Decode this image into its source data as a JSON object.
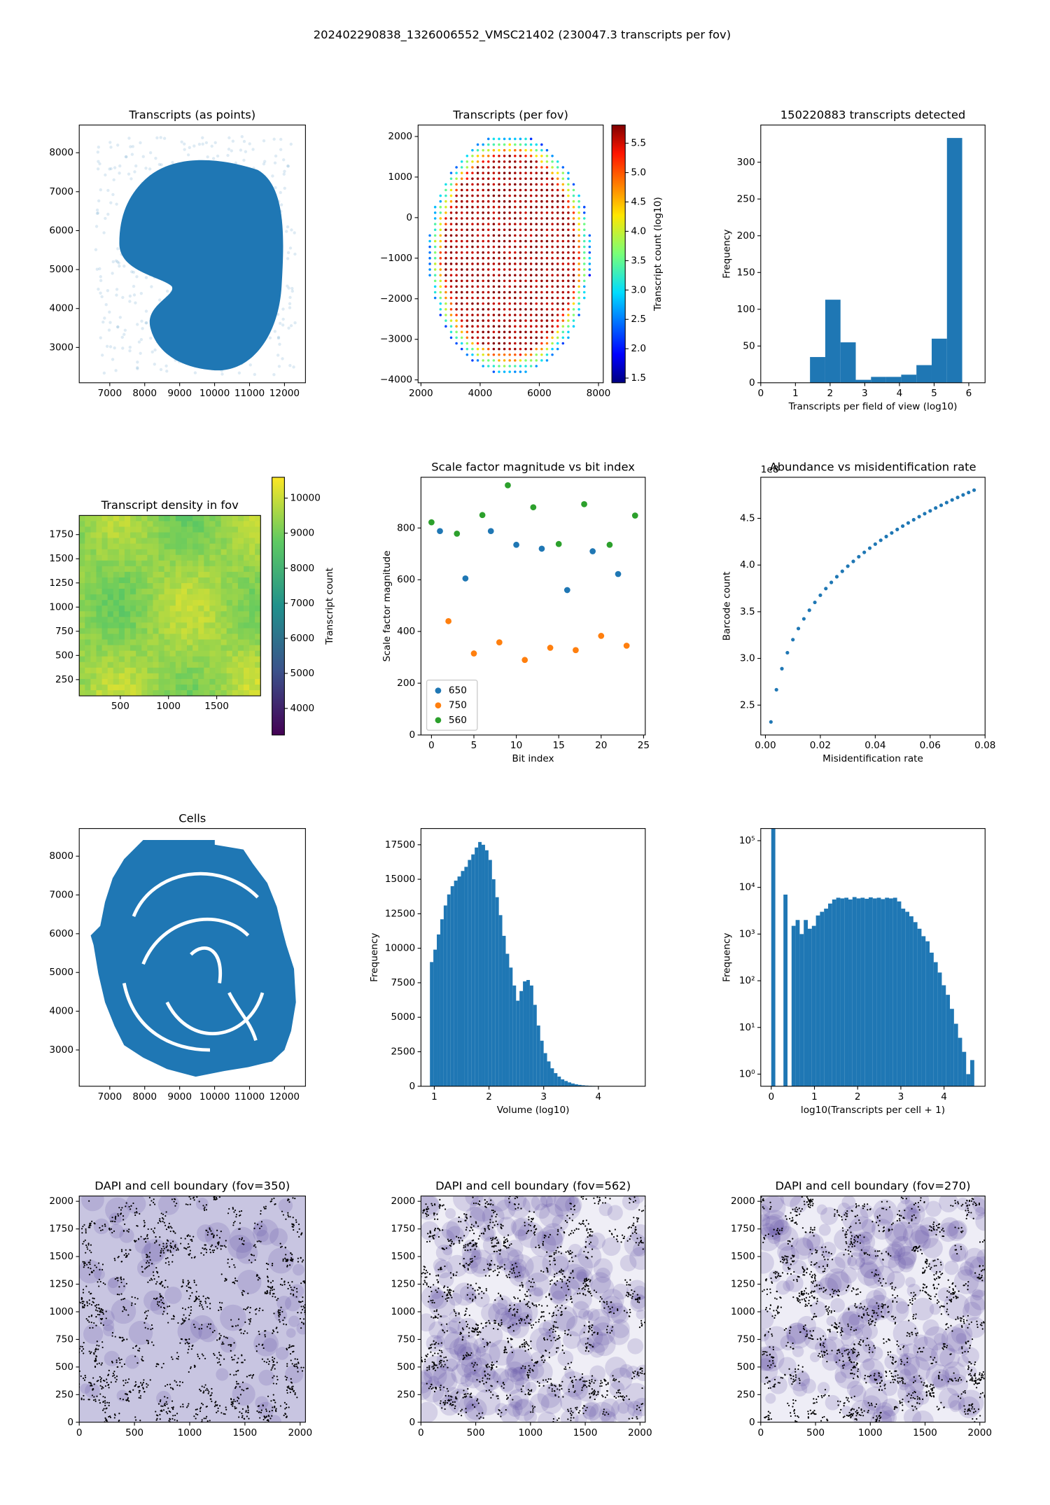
{
  "title": "202402290838_1326006552_VMSC21402 (230047.3 transcripts per fov)",
  "chart_data": [
    {
      "type": "image",
      "title": "Transcripts (as points)",
      "xlim": [
        6126,
        12600
      ],
      "ylim": [
        2093,
        8711
      ],
      "xticks": [
        7000,
        8000,
        9000,
        10000,
        11000,
        12000
      ],
      "yticks": [
        3000,
        4000,
        5000,
        6000,
        7000,
        8000
      ]
    },
    {
      "type": "image",
      "title": "Transcripts (per fov)",
      "xlim": [
        1903,
        8161
      ],
      "ylim": [
        -4071,
        2282
      ],
      "xticks": [
        2000,
        4000,
        6000,
        8000
      ],
      "yticks": [
        {
          "value": -4000,
          "label": "−4000"
        },
        {
          "value": -3000,
          "label": "−3000"
        },
        {
          "value": -2000,
          "label": "−2000"
        },
        {
          "value": -1000,
          "label": "−1000"
        },
        0,
        1000,
        2000
      ],
      "colorbar": {
        "label": "Transcript count (log10)",
        "colormap": "jet",
        "lim": [
          1.42,
          5.81
        ],
        "ticks": [
          1.5,
          {
            "value": 2,
            "label": "2.0"
          },
          2.5,
          {
            "value": 3,
            "label": "3.0"
          },
          3.5,
          {
            "value": 4,
            "label": "4.0"
          },
          4.5,
          {
            "value": 5,
            "label": "5.0"
          },
          5.5
        ]
      }
    },
    {
      "type": "histogram",
      "title": "150220883 transcripts detected",
      "xlabel": "Transcripts per field of view (log10)",
      "ylabel": "Frequency",
      "color": "#1f77b4",
      "xlim": [
        0,
        6.47
      ],
      "ylim": [
        0,
        350.6
      ],
      "xticks": [
        0,
        1,
        2,
        3,
        4,
        5,
        6
      ],
      "yticks": [
        0,
        50,
        100,
        150,
        200,
        250,
        300
      ],
      "bins": [
        1.42,
        1.86,
        2.3,
        2.74,
        3.18,
        3.61,
        4.05,
        4.49,
        4.93,
        5.37,
        5.81
      ],
      "values": [
        35,
        113,
        55,
        4,
        8,
        8,
        11,
        24,
        60,
        333
      ]
    },
    {
      "type": "image",
      "title": "Transcript density in fov",
      "xlim": [
        74,
        1955
      ],
      "ylim": [
        82,
        1948
      ],
      "xticks": [
        500,
        1000,
        1500
      ],
      "yticks": [
        250,
        500,
        750,
        1000,
        1250,
        1500,
        1750
      ],
      "colorbar": {
        "label": "Transcript count",
        "colormap": "viridis",
        "lim": [
          3243,
          10595
        ],
        "ticks": [
          4000,
          5000,
          6000,
          7000,
          8000,
          9000,
          10000
        ]
      }
    },
    {
      "type": "scatter",
      "title": "Scale factor magnitude vs bit index",
      "xlabel": "Bit index",
      "ylabel": "Scale factor magnitude",
      "xlim": [
        -1.24,
        25.2
      ],
      "ylim": [
        0,
        996
      ],
      "xticks": [
        0,
        5,
        10,
        15,
        20,
        25
      ],
      "yticks": [
        0,
        200,
        400,
        600,
        800
      ],
      "legend": "lower left",
      "series": [
        {
          "name": "650",
          "color": "#1f77b4",
          "x": [
            1,
            4,
            7,
            10,
            13,
            16,
            19,
            22
          ],
          "values": [
            788,
            605,
            788,
            735,
            720,
            560,
            710,
            622
          ]
        },
        {
          "name": "750",
          "color": "#ff7f0e",
          "x": [
            2,
            5,
            8,
            11,
            14,
            17,
            20,
            23
          ],
          "values": [
            440,
            315,
            358,
            290,
            337,
            328,
            383,
            345
          ]
        },
        {
          "name": "560",
          "color": "#2ca02c",
          "x": [
            0,
            3,
            6,
            9,
            12,
            15,
            18,
            21,
            24
          ],
          "values": [
            822,
            778,
            850,
            965,
            880,
            738,
            892,
            735,
            848
          ]
        }
      ]
    },
    {
      "type": "scatter",
      "title": "Abundance vs misidentification rate",
      "xlabel": "Misidentification rate",
      "ylabel": "Barcode count",
      "offset_label": "1e8",
      "xlim": [
        -0.0017,
        0.08
      ],
      "ylim": [
        2.18,
        4.94
      ],
      "xticks": [
        {
          "value": 0,
          "label": "0.00"
        },
        0.02,
        0.04,
        0.06,
        0.08
      ],
      "yticks": [
        2.5,
        {
          "value": 3,
          "label": "3.0"
        },
        3.5,
        {
          "value": 4,
          "label": "4.0"
        },
        4.5
      ],
      "series": [
        {
          "color": "#1f77b4",
          "x": [
            0.002,
            0.004,
            0.006,
            0.008,
            0.01,
            0.012,
            0.014,
            0.016,
            0.018,
            0.02,
            0.022,
            0.024,
            0.026,
            0.028,
            0.03,
            0.032,
            0.034,
            0.036,
            0.038,
            0.04,
            0.042,
            0.044,
            0.046,
            0.048,
            0.05,
            0.052,
            0.054,
            0.056,
            0.058,
            0.06,
            0.062,
            0.064,
            0.066,
            0.068,
            0.07,
            0.072,
            0.074,
            0.076
          ],
          "values": [
            2.32,
            2.665,
            2.89,
            3.061,
            3.201,
            3.32,
            3.424,
            3.516,
            3.6,
            3.677,
            3.748,
            3.814,
            3.875,
            3.933,
            3.988,
            4.039,
            4.089,
            4.136,
            4.181,
            4.224,
            4.265,
            4.305,
            4.344,
            4.381,
            4.417,
            4.451,
            4.485,
            4.518,
            4.55,
            4.58,
            4.611,
            4.64,
            4.669,
            4.697,
            4.724,
            4.751,
            4.777,
            4.802
          ]
        }
      ]
    },
    {
      "type": "image",
      "title": "Cells",
      "xlim": [
        6126,
        12600
      ],
      "ylim": [
        2064,
        8714
      ],
      "xticks": [
        7000,
        8000,
        9000,
        10000,
        11000,
        12000
      ],
      "yticks": [
        3000,
        4000,
        5000,
        6000,
        7000,
        8000
      ]
    },
    {
      "type": "histogram",
      "xlabel": "Volume (log10)",
      "ylabel": "Frequency",
      "color": "#1f77b4",
      "xlim": [
        0.756,
        4.857
      ],
      "ylim": [
        0,
        18676
      ],
      "xticks": [
        1,
        2,
        3,
        4
      ],
      "yticks": [
        0,
        2500,
        5000,
        7500,
        10000,
        12500,
        15000,
        17500
      ],
      "bins": [
        0.92,
        0.983,
        1.046,
        1.109,
        1.172,
        1.235,
        1.298,
        1.361,
        1.424,
        1.487,
        1.55,
        1.613,
        1.676,
        1.739,
        1.802,
        1.865,
        1.928,
        1.991,
        2.054,
        2.117,
        2.18,
        2.243,
        2.306,
        2.369,
        2.432,
        2.495,
        2.558,
        2.621,
        2.684,
        2.747,
        2.81,
        2.873,
        2.936,
        2.999,
        3.062,
        3.125,
        3.188,
        3.251,
        3.314,
        3.377,
        3.44,
        3.503,
        3.566,
        3.629,
        3.692,
        3.755,
        3.818,
        3.881,
        3.944,
        4.007,
        4.07,
        4.133,
        4.196,
        4.259,
        4.322,
        4.385,
        4.448,
        4.511,
        4.574,
        4.637,
        4.7
      ],
      "values": [
        9000,
        9900,
        11000,
        12100,
        13100,
        13900,
        14500,
        14900,
        15200,
        15600,
        15900,
        16400,
        16800,
        17300,
        17700,
        17500,
        17100,
        16400,
        15000,
        13700,
        12400,
        10900,
        9600,
        8600,
        7300,
        6200,
        6900,
        7600,
        7700,
        7300,
        5900,
        4400,
        3300,
        2400,
        1800,
        1300,
        950,
        700,
        500,
        380,
        280,
        200,
        140,
        100,
        70,
        50,
        35,
        25,
        18,
        12,
        8,
        6,
        4,
        3,
        2,
        2,
        1,
        1,
        1,
        1
      ]
    },
    {
      "type": "histogram",
      "xlabel": "log10(Transcripts per cell + 1)",
      "ylabel": "Frequency",
      "color": "#1f77b4",
      "log_y": true,
      "xlim": [
        -0.243,
        4.95
      ],
      "ylim": [
        0.55,
        182000
      ],
      "xticks": [
        0,
        1,
        2,
        3,
        4
      ],
      "yticks": [
        {
          "value": 1,
          "label": "10⁰"
        },
        {
          "value": 10,
          "label": "10¹"
        },
        {
          "value": 100,
          "label": "10²"
        },
        {
          "value": 1000,
          "label": "10³"
        },
        {
          "value": 10000,
          "label": "10⁴"
        },
        {
          "value": 100000,
          "label": "10⁵"
        }
      ],
      "bins": [
        0,
        0.094,
        0.188,
        0.282,
        0.376,
        0.47,
        0.564,
        0.658,
        0.752,
        0.846,
        0.94,
        1.034,
        1.128,
        1.222,
        1.316,
        1.41,
        1.504,
        1.598,
        1.692,
        1.786,
        1.88,
        1.974,
        2.068,
        2.162,
        2.256,
        2.35,
        2.444,
        2.538,
        2.632,
        2.726,
        2.82,
        2.914,
        3.008,
        3.102,
        3.196,
        3.29,
        3.384,
        3.478,
        3.572,
        3.666,
        3.76,
        3.854,
        3.948,
        4.042,
        4.136,
        4.23,
        4.324,
        4.418,
        4.512,
        4.606,
        4.7
      ],
      "values": [
        200000,
        0,
        0,
        7000,
        0,
        1500,
        2000,
        1000,
        2000,
        1300,
        1500,
        2500,
        3000,
        3500,
        4500,
        5500,
        6000,
        5800,
        6000,
        5500,
        6200,
        5800,
        6000,
        5700,
        6100,
        5800,
        6000,
        5600,
        6000,
        5800,
        6000,
        5000,
        3500,
        3000,
        2400,
        1800,
        1300,
        900,
        700,
        400,
        250,
        150,
        80,
        50,
        25,
        12,
        6,
        3,
        1,
        2
      ]
    },
    {
      "type": "image",
      "title": "DAPI and cell boundary (fov=350)",
      "xlim": [
        0,
        2048
      ],
      "ylim": [
        0,
        2048
      ],
      "xticks": [
        0,
        500,
        1000,
        1500,
        2000
      ],
      "yticks": [
        0,
        250,
        500,
        750,
        1000,
        1250,
        1500,
        1750,
        2000
      ]
    },
    {
      "type": "image",
      "title": "DAPI and cell boundary (fov=562)",
      "xlim": [
        0,
        2048
      ],
      "ylim": [
        0,
        2048
      ],
      "xticks": [
        0,
        500,
        1000,
        1500,
        2000
      ],
      "yticks": [
        0,
        250,
        500,
        750,
        1000,
        1250,
        1500,
        1750,
        2000
      ]
    },
    {
      "type": "image",
      "title": "DAPI and cell boundary (fov=270)",
      "xlim": [
        0,
        2048
      ],
      "ylim": [
        0,
        2048
      ],
      "xticks": [
        0,
        500,
        1000,
        1500,
        2000
      ],
      "yticks": [
        0,
        250,
        500,
        750,
        1000,
        1250,
        1500,
        1750,
        2000
      ]
    }
  ]
}
